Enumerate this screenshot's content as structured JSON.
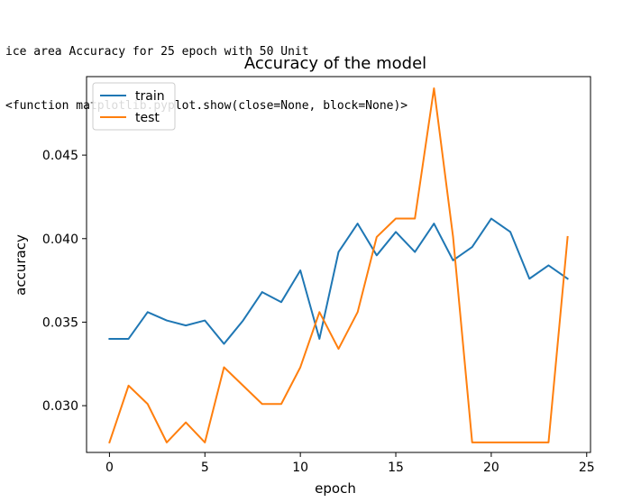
{
  "console": {
    "line1": "ice area Accuracy for 25 epoch with 50 Unit",
    "line2": "<function matplotlib.pyplot.show(close=None, block=None)>"
  },
  "chart_data": {
    "type": "line",
    "title": "Accuracy of the model",
    "xlabel": "epoch",
    "ylabel": "accuracy",
    "x": [
      0,
      1,
      2,
      3,
      4,
      5,
      6,
      7,
      8,
      9,
      10,
      11,
      12,
      13,
      14,
      15,
      16,
      17,
      18,
      19,
      20,
      21,
      22,
      23,
      24
    ],
    "xlim": [
      -1.2,
      25.2
    ],
    "ylim": [
      0.0272,
      0.0497
    ],
    "xticks": [
      0,
      5,
      10,
      15,
      20,
      25
    ],
    "yticks": [
      0.03,
      0.035,
      0.04,
      0.045
    ],
    "xtick_labels": [
      "0",
      "5",
      "10",
      "15",
      "20",
      "25"
    ],
    "ytick_labels": [
      "0.030",
      "0.035",
      "0.040",
      "0.045"
    ],
    "grid": false,
    "legend_position": "upper-left",
    "series": [
      {
        "name": "train",
        "color": "#1f77b4",
        "values": [
          0.034,
          0.034,
          0.0356,
          0.0351,
          0.0348,
          0.0351,
          0.0337,
          0.0351,
          0.0368,
          0.0362,
          0.0381,
          0.034,
          0.0392,
          0.0409,
          0.039,
          0.0404,
          0.0392,
          0.0409,
          0.0387,
          0.0395,
          0.0412,
          0.0404,
          0.0376,
          0.0384,
          0.0376
        ]
      },
      {
        "name": "test",
        "color": "#ff7f0e",
        "values": [
          0.0278,
          0.0312,
          0.0301,
          0.0278,
          0.029,
          0.0278,
          0.0323,
          0.0312,
          0.0301,
          0.0301,
          0.0323,
          0.0356,
          0.0334,
          0.0356,
          0.0401,
          0.0412,
          0.0412,
          0.049,
          0.0401,
          0.0278,
          0.0278,
          0.0278,
          0.0278,
          0.0278,
          0.0401
        ]
      }
    ]
  }
}
